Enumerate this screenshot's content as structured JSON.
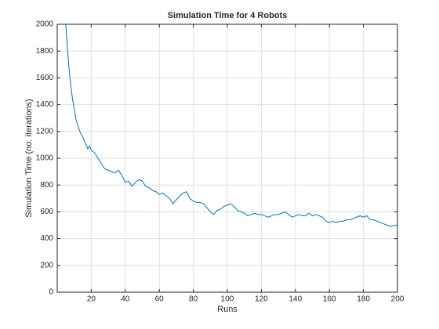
{
  "chart_data": {
    "type": "line",
    "title": "Simulation Time for 4 Robots",
    "x_label": "Runs",
    "y_label": "Simulation Time (no. iterations)",
    "x": [
      5,
      6,
      7,
      8,
      9,
      10,
      11,
      12,
      13,
      14,
      15,
      16,
      17,
      18,
      19,
      20,
      22,
      24,
      26,
      28,
      30,
      32,
      34,
      36,
      38,
      40,
      42,
      44,
      46,
      48,
      50,
      52,
      54,
      56,
      58,
      60,
      62,
      64,
      66,
      68,
      70,
      72,
      74,
      76,
      78,
      80,
      82,
      84,
      86,
      88,
      90,
      92,
      94,
      96,
      98,
      100,
      102,
      104,
      106,
      108,
      110,
      112,
      114,
      116,
      118,
      120,
      122,
      124,
      126,
      128,
      130,
      132,
      134,
      136,
      138,
      140,
      142,
      144,
      146,
      148,
      150,
      152,
      154,
      156,
      158,
      160,
      162,
      164,
      166,
      168,
      170,
      172,
      174,
      176,
      178,
      180,
      182,
      184,
      186,
      188,
      190,
      192,
      194,
      196,
      198,
      200
    ],
    "series": [
      {
        "name": "Simulation Time",
        "color": "#0072bd",
        "values": [
          2000,
          1820,
          1660,
          1540,
          1440,
          1370,
          1290,
          1250,
          1210,
          1180,
          1160,
          1130,
          1100,
          1070,
          1090,
          1060,
          1040,
          1000,
          960,
          920,
          910,
          900,
          890,
          910,
          870,
          820,
          830,
          790,
          820,
          840,
          830,
          790,
          780,
          760,
          750,
          730,
          740,
          720,
          700,
          660,
          690,
          720,
          740,
          750,
          700,
          680,
          670,
          670,
          660,
          630,
          600,
          580,
          610,
          620,
          640,
          650,
          660,
          640,
          610,
          600,
          590,
          570,
          580,
          590,
          580,
          580,
          570,
          560,
          570,
          580,
          580,
          590,
          600,
          580,
          560,
          570,
          580,
          570,
          570,
          590,
          570,
          580,
          570,
          560,
          530,
          520,
          530,
          520,
          530,
          530,
          540,
          540,
          550,
          560,
          570,
          560,
          570,
          540,
          540,
          530,
          520,
          510,
          500,
          490,
          500,
          500
        ]
      }
    ],
    "xlim": [
      0,
      200
    ],
    "xticks": [
      20,
      40,
      60,
      80,
      100,
      120,
      140,
      160,
      180,
      200
    ],
    "ylim": [
      0,
      2000
    ],
    "yticks": [
      0,
      200,
      400,
      600,
      800,
      1000,
      1200,
      1400,
      1600,
      1800,
      2000
    ],
    "grid": true
  }
}
